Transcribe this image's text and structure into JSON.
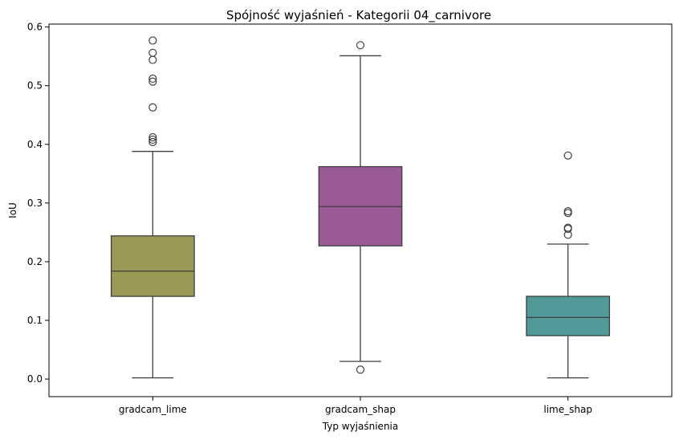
{
  "chart_data": {
    "type": "box",
    "title": "Spójność wyjaśnień - Kategorii 04_carnivore",
    "xlabel": "Typ wyjaśnienia",
    "ylabel": "IoU",
    "ylim": [
      -0.03,
      0.605
    ],
    "yticks": [
      "0.0",
      "0.1",
      "0.2",
      "0.3",
      "0.4",
      "0.5",
      "0.6"
    ],
    "grid": false,
    "categories": [
      "gradcam_lime",
      "gradcam_shap",
      "lime_shap"
    ],
    "boxes": [
      {
        "category": "gradcam_lime",
        "color": "#9a9955",
        "whisker_low": 0.002,
        "q1": 0.141,
        "median": 0.184,
        "q3": 0.244,
        "whisker_high": 0.388,
        "outliers": [
          0.404,
          0.408,
          0.412,
          0.463,
          0.507,
          0.512,
          0.544,
          0.556,
          0.577
        ]
      },
      {
        "category": "gradcam_shap",
        "color": "#9a5a98",
        "whisker_low": 0.03,
        "q1": 0.227,
        "median": 0.294,
        "q3": 0.362,
        "whisker_high": 0.551,
        "outliers": [
          0.016,
          0.569
        ]
      },
      {
        "category": "lime_shap",
        "color": "#519a99",
        "whisker_low": 0.002,
        "q1": 0.074,
        "median": 0.105,
        "q3": 0.141,
        "whisker_high": 0.23,
        "outliers": [
          0.246,
          0.256,
          0.258,
          0.283,
          0.286,
          0.381
        ]
      }
    ]
  }
}
